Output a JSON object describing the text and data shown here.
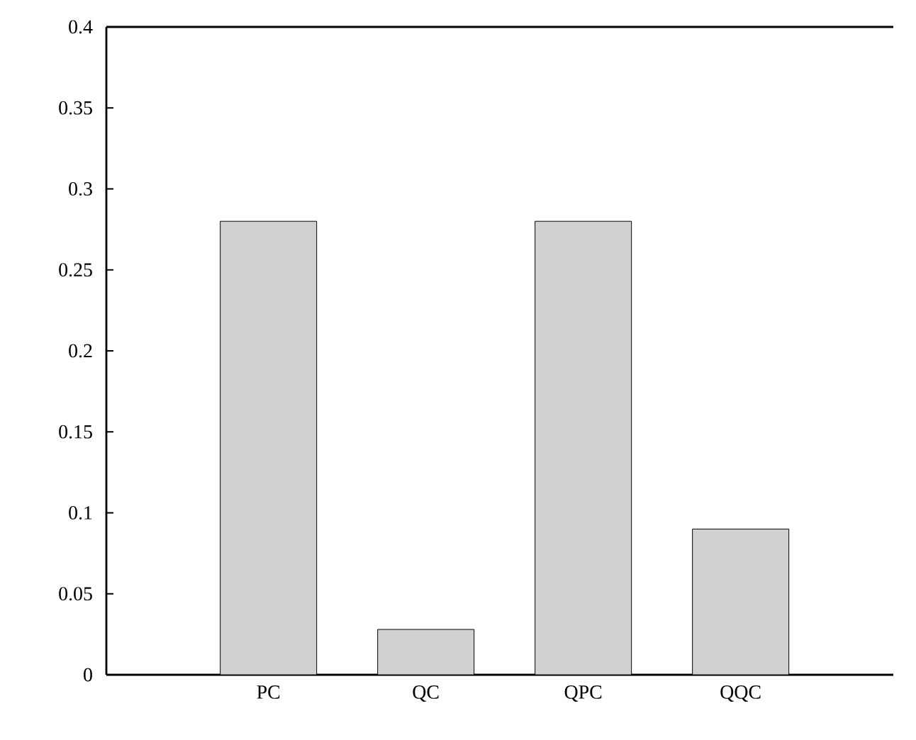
{
  "chart_data": {
    "type": "bar",
    "categories": [
      "PC",
      "QC",
      "QPC",
      "QQC"
    ],
    "values": [
      0.28,
      0.028,
      0.28,
      0.09
    ],
    "color": "#d0d1d3",
    "ylim": [
      0,
      0.4
    ],
    "yticks": [
      0,
      0.05,
      0.1,
      0.15,
      0.2,
      0.25,
      0.3,
      0.35,
      0.4
    ],
    "grid": false
  }
}
